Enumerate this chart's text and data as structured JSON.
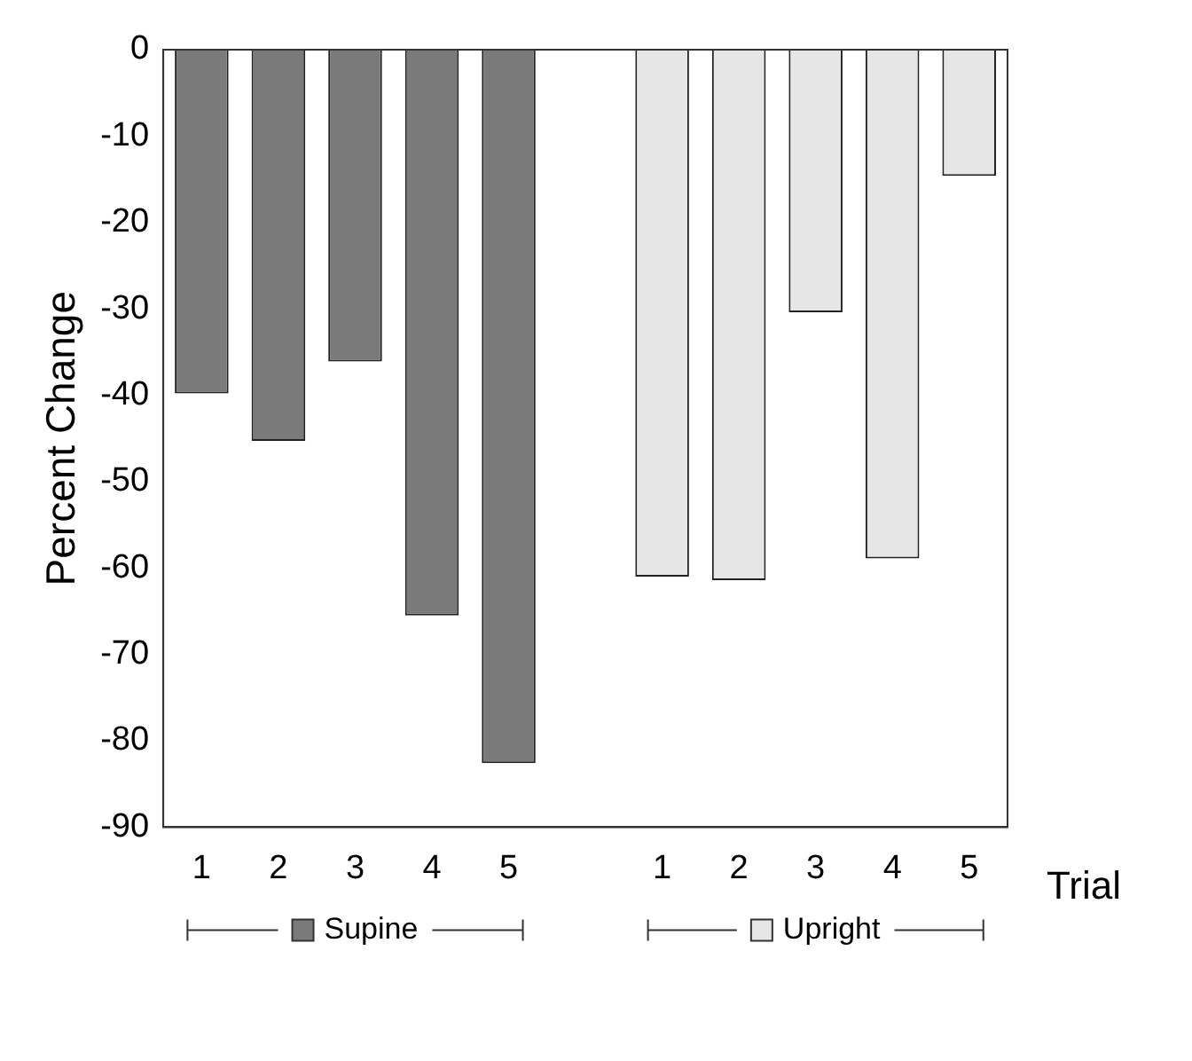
{
  "chart_data": {
    "type": "bar",
    "xlabel": "Trial",
    "ylabel": "Percent Change",
    "categories": [
      "1",
      "2",
      "3",
      "4",
      "5",
      null,
      "1",
      "2",
      "3",
      "4",
      "5"
    ],
    "series": [
      {
        "name": "Supine",
        "color": "#7a7a7a",
        "values": [
          -39.8,
          -45.3,
          -36.1,
          -65.5,
          -82.6,
          null,
          null,
          null,
          null,
          null,
          null
        ]
      },
      {
        "name": "Upright",
        "color": "#e6e6e6",
        "values": [
          null,
          null,
          null,
          null,
          null,
          null,
          -61.0,
          -61.4,
          -30.4,
          -58.9,
          -14.6
        ]
      }
    ],
    "ylim": [
      -90,
      0
    ],
    "yticks": [
      0,
      -10,
      -20,
      -30,
      -40,
      -50,
      -60,
      -70,
      -80,
      -90
    ],
    "grid": false,
    "legend": "bottom"
  }
}
